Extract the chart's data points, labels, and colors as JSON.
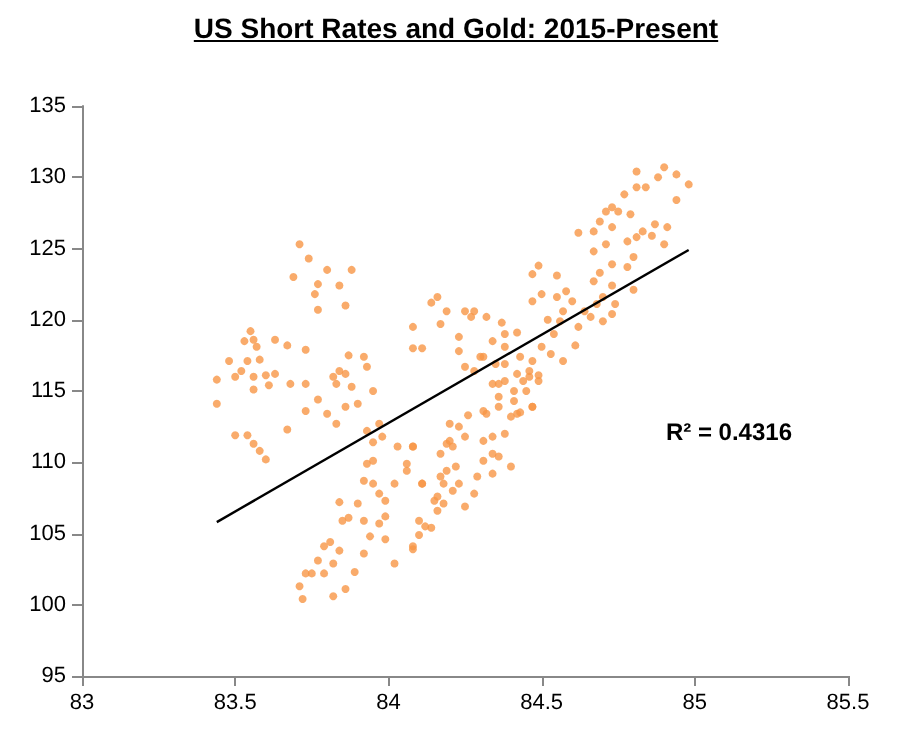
{
  "chart_data": {
    "type": "scatter",
    "title": "US Short Rates and Gold: 2015-Present",
    "xlim": [
      83,
      85.5
    ],
    "xticks": [
      83,
      83.5,
      84,
      84.5,
      85,
      85.5
    ],
    "ylim": [
      95,
      135
    ],
    "yticks": [
      95,
      100,
      105,
      110,
      115,
      120,
      125,
      130,
      135
    ],
    "grid": false,
    "marker": "circle",
    "annotations": [
      "R² = 0.4316"
    ],
    "series": [
      {
        "color": "#f79646",
        "x": [
          83.71,
          83.74,
          83.69,
          83.8,
          83.88,
          83.77,
          83.84,
          83.76,
          83.77,
          83.86,
          83.44,
          83.44,
          83.48,
          83.55,
          83.53,
          83.56,
          83.57,
          83.54,
          83.5,
          83.52,
          83.58,
          83.56,
          83.6,
          83.63,
          83.63,
          83.56,
          83.61,
          83.67,
          83.68,
          83.73,
          83.73,
          83.87,
          83.92,
          83.93,
          83.95,
          83.82,
          83.86,
          83.84,
          83.5,
          83.54,
          83.56,
          83.58,
          83.6,
          83.67,
          83.73,
          83.77,
          83.8,
          83.83,
          83.86,
          83.9,
          83.93,
          83.95,
          83.83,
          83.88,
          83.71,
          83.72,
          83.75,
          83.77,
          83.82,
          83.82,
          83.81,
          83.84,
          83.86,
          83.89,
          83.85,
          83.84,
          83.9,
          83.87,
          83.92,
          83.92,
          83.94,
          83.97,
          83.99,
          84.02,
          83.99,
          83.97,
          83.92,
          83.95,
          83.99,
          84.03,
          84.06,
          84.08,
          84.1,
          84.11,
          84.14,
          84.16,
          84.18,
          84.2,
          84.02,
          83.95,
          83.93,
          83.98,
          84.08,
          83.97,
          83.79,
          83.79,
          83.73,
          84.81,
          84.9,
          84.94,
          84.98,
          84.88,
          84.81,
          84.84,
          84.77,
          84.94,
          84.73,
          84.75,
          84.79,
          84.71,
          84.69,
          84.67,
          84.62,
          84.73,
          84.78,
          84.81,
          84.87,
          84.91,
          84.9,
          84.86,
          84.83,
          84.67,
          84.71,
          84.73,
          84.78,
          84.8,
          84.69,
          84.67,
          84.8,
          84.73,
          84.7,
          84.68,
          84.74,
          84.73,
          84.7,
          84.66,
          84.64,
          84.6,
          84.57,
          84.62,
          84.56,
          84.49,
          84.47,
          84.55,
          84.58,
          84.55,
          84.52,
          84.47,
          84.5,
          84.54,
          84.5,
          84.53,
          84.61,
          84.47,
          84.46,
          84.42,
          84.38,
          84.43,
          84.44,
          84.41,
          84.42,
          84.47,
          84.32,
          84.26,
          84.36,
          84.34,
          84.38,
          84.35,
          84.31,
          84.34,
          84.38,
          84.42,
          84.25,
          84.23,
          84.23,
          84.25,
          84.28,
          84.27,
          84.32,
          84.37,
          84.19,
          84.16,
          84.14,
          84.08,
          84.08,
          84.11,
          84.17,
          84.28,
          84.3,
          84.38,
          84.45,
          84.49,
          84.08,
          84.1,
          84.12,
          84.16,
          84.18,
          84.15,
          84.21,
          84.25,
          84.23,
          84.22,
          84.19,
          84.17,
          84.28,
          84.29,
          84.31,
          84.34,
          84.34,
          84.36,
          84.4,
          84.31,
          84.34,
          84.38,
          84.25,
          84.21,
          84.19,
          84.17,
          84.2,
          84.23,
          84.31,
          84.36,
          84.4,
          84.43,
          84.47,
          84.36,
          84.41,
          84.46,
          84.49,
          84.57,
          84.08,
          84.06,
          84.11
        ],
        "values": [
          125.3,
          124.3,
          123.0,
          123.5,
          123.5,
          122.5,
          122.4,
          121.8,
          120.7,
          121.0,
          115.8,
          114.1,
          117.1,
          119.2,
          118.5,
          118.6,
          118.1,
          117.1,
          116.0,
          116.4,
          117.2,
          116.0,
          116.1,
          118.6,
          116.2,
          115.1,
          115.4,
          118.2,
          115.5,
          117.9,
          115.5,
          117.5,
          117.4,
          116.7,
          115.0,
          116.0,
          116.2,
          116.4,
          111.9,
          111.9,
          111.3,
          110.8,
          110.2,
          112.3,
          113.6,
          114.4,
          113.4,
          112.7,
          113.9,
          114.1,
          112.2,
          111.4,
          115.5,
          115.3,
          101.3,
          100.4,
          102.2,
          103.1,
          100.6,
          102.9,
          104.4,
          103.8,
          101.1,
          102.3,
          105.9,
          107.2,
          107.1,
          106.1,
          105.9,
          103.6,
          104.8,
          107.8,
          106.2,
          102.9,
          104.6,
          105.7,
          108.7,
          108.5,
          107.3,
          111.1,
          109.9,
          104.1,
          105.9,
          108.5,
          105.4,
          107.6,
          108.5,
          111.5,
          108.5,
          110.1,
          109.9,
          111.8,
          111.1,
          112.7,
          104.1,
          102.2,
          102.2,
          130.4,
          130.7,
          130.2,
          129.5,
          130.0,
          129.3,
          129.3,
          128.8,
          128.4,
          127.9,
          127.6,
          127.4,
          127.6,
          126.9,
          126.2,
          126.1,
          126.5,
          125.5,
          125.8,
          126.7,
          126.5,
          125.3,
          125.9,
          126.2,
          124.8,
          125.3,
          123.9,
          123.7,
          124.4,
          123.3,
          122.7,
          122.1,
          122.4,
          121.6,
          121.1,
          121.1,
          120.4,
          119.9,
          120.2,
          120.6,
          121.3,
          120.6,
          119.5,
          119.9,
          123.8,
          123.2,
          123.1,
          122.0,
          121.6,
          120.0,
          121.3,
          121.8,
          119.0,
          118.1,
          117.6,
          118.2,
          117.1,
          116.4,
          116.2,
          118.1,
          117.4,
          115.7,
          114.3,
          113.4,
          113.9,
          113.4,
          113.3,
          114.6,
          115.5,
          115.7,
          116.9,
          117.4,
          118.5,
          119.0,
          119.1,
          116.7,
          117.8,
          118.8,
          120.6,
          120.6,
          120.2,
          120.2,
          119.8,
          120.6,
          121.6,
          121.2,
          119.5,
          118.0,
          118.0,
          119.7,
          116.4,
          117.4,
          116.9,
          115.0,
          116.1,
          103.9,
          104.9,
          105.5,
          106.6,
          107.1,
          107.3,
          108.0,
          106.9,
          108.5,
          109.7,
          109.4,
          109.0,
          107.8,
          109.0,
          110.1,
          109.2,
          110.6,
          110.4,
          109.7,
          111.5,
          111.8,
          112.0,
          111.8,
          111.1,
          111.3,
          110.6,
          112.7,
          112.5,
          113.6,
          113.9,
          113.2,
          113.5,
          113.9,
          115.5,
          115.0,
          116.0,
          115.7,
          117.1,
          111.1,
          109.4,
          108.5
        ]
      },
      {
        "type": "line",
        "color": "#000000",
        "marker": "none",
        "x": [
          83.44,
          84.98
        ],
        "values": [
          105.8,
          124.9
        ]
      }
    ]
  }
}
